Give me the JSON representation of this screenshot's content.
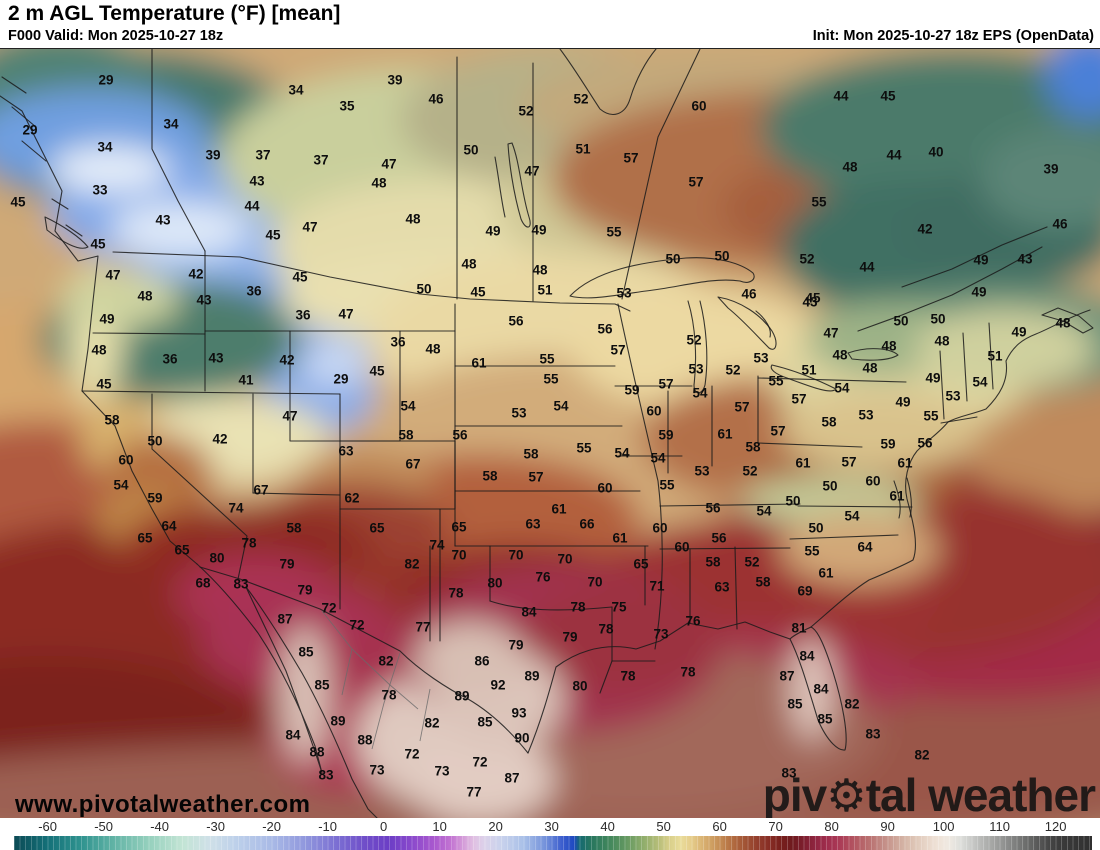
{
  "header": {
    "title": "2 m AGL Temperature (°F) [mean]",
    "valid": "F000 Valid: Mon 2025-10-27 18z",
    "init": "Init: Mon 2025-10-27 18z EPS (OpenData)"
  },
  "watermark": "www.pivotalweather.com",
  "logo": {
    "part1": "piv",
    "gear_icon": "⚙",
    "part2": "tal weather"
  },
  "colorbar": {
    "unit": "°F",
    "bar_min": -66,
    "bar_max": 126.5,
    "ticks": [
      -60,
      -50,
      -40,
      -30,
      -20,
      -10,
      0,
      10,
      20,
      30,
      40,
      50,
      60,
      70,
      80,
      90,
      100,
      110,
      120
    ],
    "stops": [
      [
        -66,
        "#0b4a55"
      ],
      [
        -60,
        "#147078"
      ],
      [
        -54,
        "#2f938f"
      ],
      [
        -48,
        "#63b4a6"
      ],
      [
        -42,
        "#95d0bd"
      ],
      [
        -36,
        "#c2e4d4"
      ],
      [
        -31,
        "#cfe0e8"
      ],
      [
        -26,
        "#bccfea"
      ],
      [
        -20,
        "#a9bae6"
      ],
      [
        -14,
        "#9097dd"
      ],
      [
        -8,
        "#7a6cd2"
      ],
      [
        -3,
        "#6f4cc8"
      ],
      [
        1,
        "#6c3ec6"
      ],
      [
        5,
        "#8a49cc"
      ],
      [
        9,
        "#a958ce"
      ],
      [
        12,
        "#c273d2"
      ],
      [
        14,
        "#d398d8"
      ],
      [
        16,
        "#e0bfe2"
      ],
      [
        18,
        "#dcd2ea"
      ],
      [
        21,
        "#c9d2ec"
      ],
      [
        25,
        "#a9c0e8"
      ],
      [
        29,
        "#7290da"
      ],
      [
        32,
        "#3a5ccd"
      ],
      [
        34,
        "#1e49c0"
      ],
      [
        35,
        "#156a72"
      ],
      [
        37,
        "#27765f"
      ],
      [
        40,
        "#3f855c"
      ],
      [
        43,
        "#5f9660"
      ],
      [
        46,
        "#8aab6a"
      ],
      [
        49,
        "#b5bd78"
      ],
      [
        51,
        "#d8cf8a"
      ],
      [
        53,
        "#e9dc9a"
      ],
      [
        55,
        "#e5cc8a"
      ],
      [
        57,
        "#d9b272"
      ],
      [
        59,
        "#cc9a5e"
      ],
      [
        61,
        "#bd7f4b"
      ],
      [
        63,
        "#ad643c"
      ],
      [
        65,
        "#9e4f33"
      ],
      [
        67,
        "#923c2c"
      ],
      [
        69,
        "#862c24"
      ],
      [
        71,
        "#771f1c"
      ],
      [
        73,
        "#6f1a1e"
      ],
      [
        75,
        "#7d1e2e"
      ],
      [
        77,
        "#8f2540"
      ],
      [
        79,
        "#9e2c4c"
      ],
      [
        81,
        "#a93755"
      ],
      [
        83,
        "#b04a5c"
      ],
      [
        85,
        "#b55f66"
      ],
      [
        87,
        "#ba7372"
      ],
      [
        89,
        "#c28a84"
      ],
      [
        91,
        "#cb9f94"
      ],
      [
        93,
        "#d5b5a6"
      ],
      [
        95,
        "#dfc7b8"
      ],
      [
        97,
        "#e8d6c9"
      ],
      [
        99,
        "#efe3d8"
      ],
      [
        101,
        "#efe9e2"
      ],
      [
        103,
        "#dedfdb"
      ],
      [
        105,
        "#c9cac8"
      ],
      [
        107,
        "#b5b6b4"
      ],
      [
        109,
        "#a2a3a1"
      ],
      [
        111,
        "#8f908f"
      ],
      [
        113,
        "#7c7d7c"
      ],
      [
        115,
        "#696a69"
      ],
      [
        117,
        "#575757"
      ],
      [
        119,
        "#454545"
      ],
      [
        121,
        "#3a3a3a"
      ],
      [
        126.5,
        "#303030"
      ]
    ]
  },
  "map": {
    "labels": [
      [
        106,
        81,
        29
      ],
      [
        296,
        91,
        34
      ],
      [
        30,
        131,
        29
      ],
      [
        171,
        125,
        34
      ],
      [
        105,
        148,
        34
      ],
      [
        347,
        107,
        35
      ],
      [
        213,
        156,
        39
      ],
      [
        263,
        156,
        37
      ],
      [
        321,
        161,
        37
      ],
      [
        257,
        182,
        43
      ],
      [
        100,
        191,
        33
      ],
      [
        252,
        207,
        44
      ],
      [
        18,
        203,
        45
      ],
      [
        163,
        221,
        43
      ],
      [
        310,
        228,
        47
      ],
      [
        273,
        236,
        45
      ],
      [
        98,
        245,
        45
      ],
      [
        113,
        276,
        47
      ],
      [
        196,
        275,
        42
      ],
      [
        254,
        292,
        36
      ],
      [
        300,
        278,
        45
      ],
      [
        145,
        297,
        48
      ],
      [
        204,
        301,
        43
      ],
      [
        379,
        184,
        48
      ],
      [
        389,
        165,
        47
      ],
      [
        395,
        81,
        39
      ],
      [
        436,
        100,
        46
      ],
      [
        581,
        100,
        52
      ],
      [
        526,
        112,
        52
      ],
      [
        699,
        107,
        60
      ],
      [
        471,
        151,
        50
      ],
      [
        583,
        150,
        51
      ],
      [
        532,
        172,
        47
      ],
      [
        631,
        159,
        57
      ],
      [
        696,
        183,
        57
      ],
      [
        413,
        220,
        48
      ],
      [
        493,
        232,
        49
      ],
      [
        539,
        231,
        49
      ],
      [
        614,
        233,
        55
      ],
      [
        469,
        265,
        48
      ],
      [
        673,
        260,
        50
      ],
      [
        722,
        257,
        50
      ],
      [
        540,
        271,
        48
      ],
      [
        424,
        290,
        50
      ],
      [
        478,
        293,
        45
      ],
      [
        545,
        291,
        51
      ],
      [
        624,
        294,
        53
      ],
      [
        749,
        295,
        46
      ],
      [
        841,
        97,
        44
      ],
      [
        888,
        97,
        45
      ],
      [
        936,
        153,
        40
      ],
      [
        894,
        156,
        44
      ],
      [
        850,
        168,
        48
      ],
      [
        1051,
        170,
        39
      ],
      [
        819,
        203,
        55
      ],
      [
        925,
        230,
        42
      ],
      [
        1060,
        225,
        46
      ],
      [
        807,
        260,
        52
      ],
      [
        867,
        268,
        44
      ],
      [
        981,
        261,
        49
      ],
      [
        1025,
        260,
        43
      ],
      [
        979,
        293,
        49
      ],
      [
        813,
        299,
        45
      ],
      [
        107,
        320,
        49
      ],
      [
        99,
        351,
        48
      ],
      [
        303,
        316,
        36
      ],
      [
        346,
        315,
        47
      ],
      [
        170,
        360,
        36
      ],
      [
        216,
        359,
        43
      ],
      [
        287,
        361,
        42
      ],
      [
        104,
        385,
        45
      ],
      [
        246,
        381,
        41
      ],
      [
        341,
        380,
        29
      ],
      [
        290,
        417,
        47
      ],
      [
        112,
        421,
        58
      ],
      [
        155,
        442,
        50
      ],
      [
        220,
        440,
        42
      ],
      [
        346,
        452,
        63
      ],
      [
        126,
        461,
        60
      ],
      [
        121,
        486,
        54
      ],
      [
        261,
        491,
        67
      ],
      [
        352,
        499,
        62
      ],
      [
        155,
        499,
        59
      ],
      [
        236,
        509,
        74
      ],
      [
        169,
        527,
        64
      ],
      [
        294,
        529,
        58
      ],
      [
        145,
        539,
        65
      ],
      [
        249,
        544,
        78
      ],
      [
        182,
        551,
        65
      ],
      [
        217,
        559,
        80
      ],
      [
        377,
        529,
        65
      ],
      [
        377,
        372,
        45
      ],
      [
        516,
        322,
        56
      ],
      [
        605,
        330,
        56
      ],
      [
        398,
        343,
        36
      ],
      [
        433,
        350,
        48
      ],
      [
        618,
        351,
        57
      ],
      [
        479,
        364,
        61
      ],
      [
        547,
        360,
        55
      ],
      [
        694,
        341,
        52
      ],
      [
        696,
        370,
        53
      ],
      [
        733,
        371,
        52
      ],
      [
        551,
        380,
        55
      ],
      [
        666,
        385,
        57
      ],
      [
        632,
        391,
        59
      ],
      [
        700,
        394,
        54
      ],
      [
        408,
        407,
        54
      ],
      [
        561,
        407,
        54
      ],
      [
        742,
        408,
        57
      ],
      [
        519,
        414,
        53
      ],
      [
        654,
        412,
        60
      ],
      [
        666,
        436,
        59
      ],
      [
        725,
        435,
        61
      ],
      [
        406,
        436,
        58
      ],
      [
        460,
        436,
        56
      ],
      [
        584,
        449,
        55
      ],
      [
        622,
        454,
        54
      ],
      [
        531,
        455,
        58
      ],
      [
        658,
        459,
        54
      ],
      [
        753,
        448,
        58
      ],
      [
        413,
        465,
        67
      ],
      [
        490,
        477,
        58
      ],
      [
        536,
        478,
        57
      ],
      [
        702,
        472,
        53
      ],
      [
        750,
        472,
        52
      ],
      [
        605,
        489,
        60
      ],
      [
        667,
        486,
        55
      ],
      [
        559,
        510,
        61
      ],
      [
        713,
        509,
        56
      ],
      [
        533,
        525,
        63
      ],
      [
        459,
        528,
        65
      ],
      [
        587,
        525,
        66
      ],
      [
        437,
        546,
        74
      ],
      [
        620,
        539,
        61
      ],
      [
        660,
        529,
        60
      ],
      [
        719,
        539,
        56
      ],
      [
        459,
        556,
        70
      ],
      [
        516,
        556,
        70
      ],
      [
        682,
        548,
        60
      ],
      [
        565,
        560,
        70
      ],
      [
        412,
        565,
        82
      ],
      [
        713,
        563,
        58
      ],
      [
        641,
        565,
        65
      ],
      [
        752,
        563,
        52
      ],
      [
        810,
        303,
        43
      ],
      [
        901,
        322,
        50
      ],
      [
        938,
        320,
        50
      ],
      [
        831,
        334,
        47
      ],
      [
        1063,
        324,
        48
      ],
      [
        1019,
        333,
        49
      ],
      [
        995,
        357,
        51
      ],
      [
        942,
        342,
        48
      ],
      [
        889,
        347,
        48
      ],
      [
        840,
        356,
        48
      ],
      [
        870,
        369,
        48
      ],
      [
        761,
        359,
        53
      ],
      [
        809,
        371,
        51
      ],
      [
        776,
        382,
        55
      ],
      [
        799,
        400,
        57
      ],
      [
        842,
        389,
        54
      ],
      [
        933,
        379,
        49
      ],
      [
        980,
        383,
        54
      ],
      [
        953,
        397,
        53
      ],
      [
        903,
        403,
        49
      ],
      [
        931,
        417,
        55
      ],
      [
        866,
        416,
        53
      ],
      [
        829,
        423,
        58
      ],
      [
        778,
        432,
        57
      ],
      [
        888,
        445,
        59
      ],
      [
        925,
        444,
        56
      ],
      [
        803,
        464,
        61
      ],
      [
        849,
        463,
        57
      ],
      [
        905,
        464,
        61
      ],
      [
        873,
        482,
        60
      ],
      [
        830,
        487,
        50
      ],
      [
        897,
        497,
        61
      ],
      [
        793,
        502,
        50
      ],
      [
        764,
        512,
        54
      ],
      [
        852,
        517,
        54
      ],
      [
        816,
        529,
        50
      ],
      [
        812,
        552,
        55
      ],
      [
        865,
        548,
        64
      ],
      [
        203,
        584,
        68
      ],
      [
        241,
        585,
        83
      ],
      [
        287,
        565,
        79
      ],
      [
        305,
        591,
        79
      ],
      [
        329,
        609,
        72
      ],
      [
        285,
        620,
        87
      ],
      [
        357,
        626,
        72
      ],
      [
        306,
        653,
        85
      ],
      [
        322,
        686,
        85
      ],
      [
        338,
        722,
        89
      ],
      [
        293,
        736,
        84
      ],
      [
        365,
        741,
        88
      ],
      [
        317,
        753,
        88
      ],
      [
        326,
        776,
        83
      ],
      [
        377,
        771,
        73
      ],
      [
        543,
        578,
        76
      ],
      [
        495,
        584,
        80
      ],
      [
        595,
        583,
        70
      ],
      [
        722,
        588,
        63
      ],
      [
        456,
        594,
        78
      ],
      [
        657,
        587,
        71
      ],
      [
        529,
        613,
        84
      ],
      [
        578,
        608,
        78
      ],
      [
        619,
        608,
        75
      ],
      [
        423,
        628,
        77
      ],
      [
        693,
        622,
        76
      ],
      [
        606,
        630,
        78
      ],
      [
        661,
        635,
        73
      ],
      [
        570,
        638,
        79
      ],
      [
        516,
        646,
        79
      ],
      [
        386,
        662,
        82
      ],
      [
        482,
        662,
        86
      ],
      [
        532,
        677,
        89
      ],
      [
        498,
        686,
        92
      ],
      [
        462,
        697,
        89
      ],
      [
        389,
        696,
        78
      ],
      [
        628,
        677,
        78
      ],
      [
        688,
        673,
        78
      ],
      [
        580,
        687,
        80
      ],
      [
        519,
        714,
        93
      ],
      [
        432,
        724,
        82
      ],
      [
        485,
        723,
        85
      ],
      [
        522,
        739,
        90
      ],
      [
        412,
        755,
        72
      ],
      [
        442,
        772,
        73
      ],
      [
        480,
        763,
        72
      ],
      [
        512,
        779,
        87
      ],
      [
        474,
        793,
        77
      ],
      [
        826,
        574,
        61
      ],
      [
        763,
        583,
        58
      ],
      [
        805,
        592,
        69
      ],
      [
        799,
        629,
        81
      ],
      [
        807,
        657,
        84
      ],
      [
        787,
        677,
        87
      ],
      [
        821,
        690,
        84
      ],
      [
        795,
        705,
        85
      ],
      [
        852,
        705,
        82
      ],
      [
        825,
        720,
        85
      ],
      [
        873,
        735,
        83
      ],
      [
        922,
        756,
        82
      ],
      [
        789,
        774,
        83
      ]
    ]
  }
}
